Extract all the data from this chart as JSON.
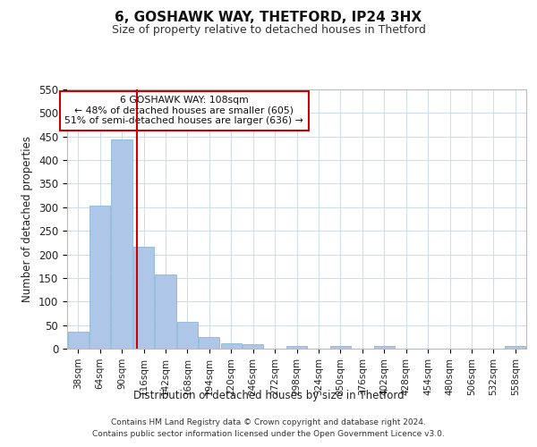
{
  "title1": "6, GOSHAWK WAY, THETFORD, IP24 3HX",
  "title2": "Size of property relative to detached houses in Thetford",
  "xlabel": "Distribution of detached houses by size in Thetford",
  "ylabel": "Number of detached properties",
  "bar_labels": [
    "38sqm",
    "64sqm",
    "90sqm",
    "116sqm",
    "142sqm",
    "168sqm",
    "194sqm",
    "220sqm",
    "246sqm",
    "272sqm",
    "298sqm",
    "324sqm",
    "350sqm",
    "376sqm",
    "402sqm",
    "428sqm",
    "454sqm",
    "480sqm",
    "506sqm",
    "532sqm",
    "558sqm"
  ],
  "bar_values": [
    36,
    303,
    443,
    217,
    158,
    57,
    25,
    12,
    9,
    0,
    5,
    0,
    5,
    0,
    5,
    0,
    0,
    0,
    0,
    0,
    5
  ],
  "bar_color": "#aec6e8",
  "bar_edgecolor": "#7bafd4",
  "ylim": [
    0,
    550
  ],
  "yticks": [
    0,
    50,
    100,
    150,
    200,
    250,
    300,
    350,
    400,
    450,
    500,
    550
  ],
  "vline_color": "#cc0000",
  "annotation_text": "6 GOSHAWK WAY: 108sqm\n← 48% of detached houses are smaller (605)\n51% of semi-detached houses are larger (636) →",
  "annotation_box_color": "#ffffff",
  "annotation_box_edgecolor": "#cc0000",
  "footer1": "Contains HM Land Registry data © Crown copyright and database right 2024.",
  "footer2": "Contains public sector information licensed under the Open Government Licence v3.0.",
  "background_color": "#ffffff",
  "grid_color": "#d0dded"
}
